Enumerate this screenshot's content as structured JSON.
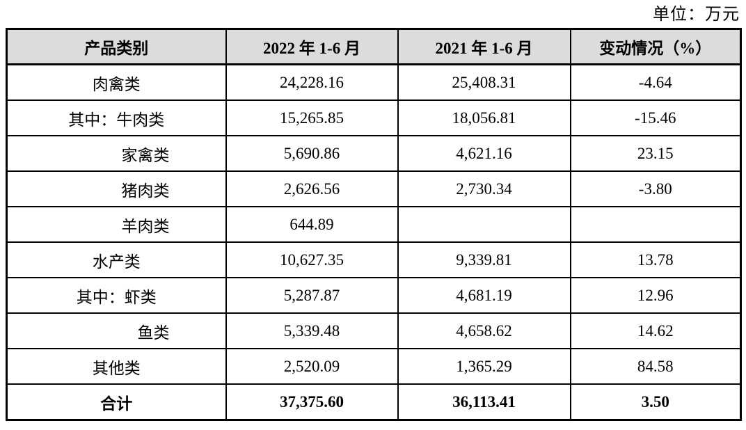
{
  "unit_label": "单位：万元",
  "table": {
    "headers": [
      "产品类别",
      "2022 年 1-6 月",
      "2021 年 1-6 月",
      "变动情况（%）"
    ],
    "rows": [
      {
        "category": "肉禽类",
        "align": "center",
        "v2022": "24,228.16",
        "v2021": "25,408.31",
        "change": "-4.64",
        "is_total": false
      },
      {
        "category": "其中：牛肉类",
        "align": "center",
        "v2022": "15,265.85",
        "v2021": "18,056.81",
        "change": "-15.46",
        "is_total": false
      },
      {
        "category": "家禽类",
        "align": "right",
        "v2022": "5,690.86",
        "v2021": "4,621.16",
        "change": "23.15",
        "is_total": false
      },
      {
        "category": "猪肉类",
        "align": "right",
        "v2022": "2,626.56",
        "v2021": "2,730.34",
        "change": "-3.80",
        "is_total": false
      },
      {
        "category": "羊肉类",
        "align": "right",
        "v2022": "644.89",
        "v2021": "",
        "change": "",
        "is_total": false
      },
      {
        "category": "水产类",
        "align": "center",
        "v2022": "10,627.35",
        "v2021": "9,339.81",
        "change": "13.78",
        "is_total": false
      },
      {
        "category": "其中：虾类",
        "align": "center",
        "v2022": "5,287.87",
        "v2021": "4,681.19",
        "change": "12.96",
        "is_total": false
      },
      {
        "category": "鱼类",
        "align": "right",
        "v2022": "5,339.48",
        "v2021": "4,658.62",
        "change": "14.62",
        "is_total": false
      },
      {
        "category": "其他类",
        "align": "center",
        "v2022": "2,520.09",
        "v2021": "1,365.29",
        "change": "84.58",
        "is_total": false
      },
      {
        "category": "合计",
        "align": "center",
        "v2022": "37,375.60",
        "v2021": "36,113.41",
        "change": "3.50",
        "is_total": true
      }
    ]
  },
  "colors": {
    "header_bg": "#dcdcdc",
    "border": "#000000",
    "text": "#000000",
    "page_bg": "#ffffff"
  }
}
